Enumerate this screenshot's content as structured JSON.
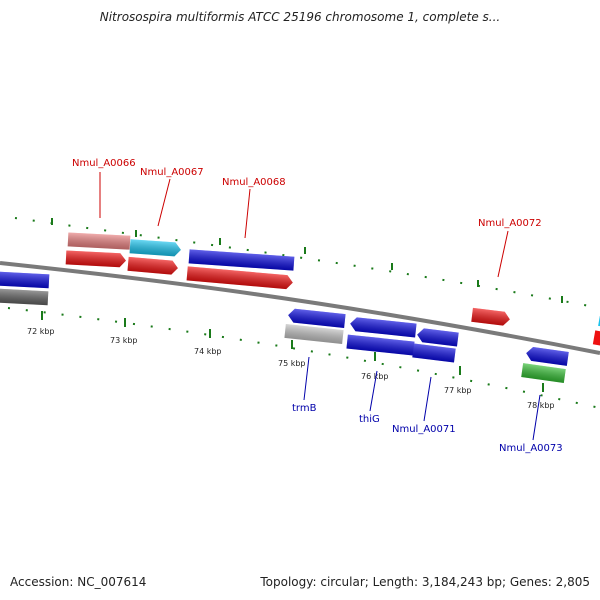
{
  "header": {
    "title": "Nitrosospira multiformis ATCC 25196 chromosome 1, complete s..."
  },
  "footer": {
    "accession": "Accession: NC_007614",
    "summary": "Topology: circular; Length: 3,184,243 bp; Genes: 2,805"
  },
  "map": {
    "scale_labels": [
      "72 kbp",
      "73 kbp",
      "74 kbp",
      "75 kbp",
      "76 kbp",
      "77 kbp",
      "78 kbp"
    ],
    "gene_labels": [
      {
        "text": "Nmul_A0066",
        "color": "#cc0000"
      },
      {
        "text": "Nmul_A0067",
        "color": "#cc0000"
      },
      {
        "text": "Nmul_A0068",
        "color": "#cc0000"
      },
      {
        "text": "Nmul_A0072",
        "color": "#cc0000"
      },
      {
        "text": "trmB",
        "color": "#0000aa"
      },
      {
        "text": "thiG",
        "color": "#0000aa"
      },
      {
        "text": "Nmul_A0071",
        "color": "#0000aa"
      },
      {
        "text": "Nmul_A0073",
        "color": "#0000aa"
      }
    ],
    "colors": {
      "backbone": "#808080",
      "ticks": "#1a7a1a",
      "blue": "#0a0adc",
      "red": "#ee1111",
      "pink": "#e88080",
      "cyan": "#19c2ec",
      "gray": "#c0c0c0",
      "darkgray": "#606060",
      "green": "#33bb33"
    }
  }
}
